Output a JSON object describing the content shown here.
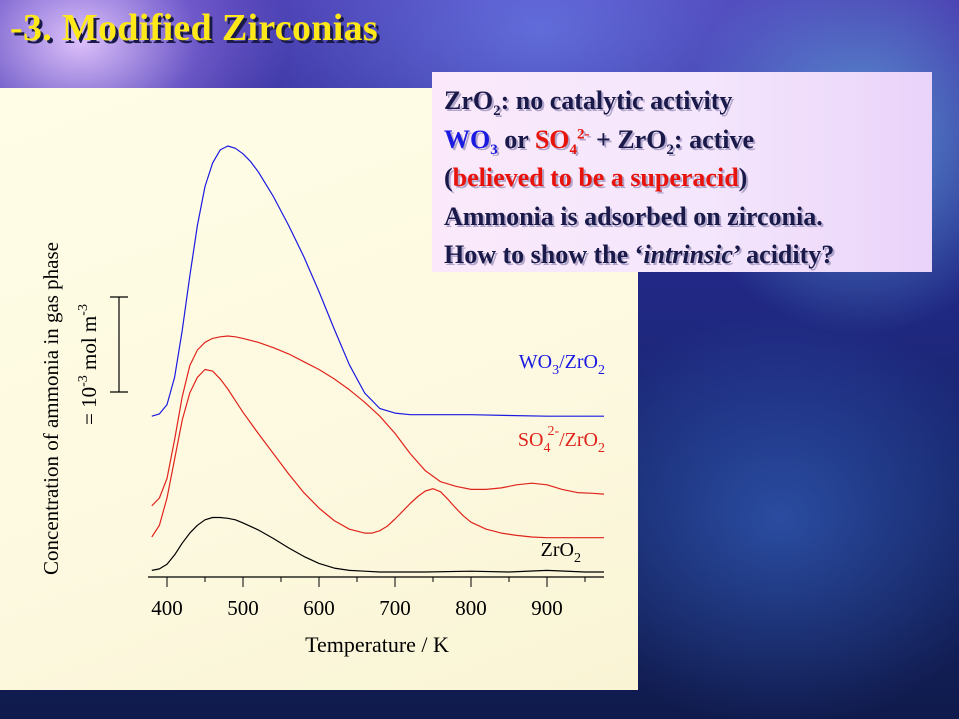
{
  "slide": {
    "title": "-3. Modified Zirconias"
  },
  "info_box": {
    "line1": {
      "formula": "ZrO",
      "sub": "2",
      "rest": ": no catalytic activity"
    },
    "line2": {
      "wo": "WO",
      "wo_sub": "3",
      "or": " or ",
      "so": "SO",
      "so_sub": "4",
      "so_sup": "2-",
      "plus": " + ZrO",
      "plus_sub": "2",
      "rest": ": active"
    },
    "line3": {
      "open": "(",
      "highlight": "believed to be a superacid",
      "close": ")"
    },
    "line4": "Ammonia is adsorbed on zirconia.",
    "line5": {
      "pre": "How to show the ‘",
      "italic": "intrinsic",
      "post": "’ acidity?"
    }
  },
  "colors": {
    "title": "#ffe81a",
    "wo3": "#1a1ae0",
    "so4": "#e0241c",
    "zro2": "#000000"
  },
  "chart_data": {
    "type": "line",
    "xlabel": "Temperature / K",
    "ylabel_line1": "Concentration of ammonia in gas phase",
    "ylabel_line2": {
      "prefix": "= 10",
      "exp1": "-3",
      "mid": " mol m",
      "exp2": "-3"
    },
    "xlim": [
      375,
      975
    ],
    "xticks": [
      400,
      500,
      600,
      700,
      800,
      900
    ],
    "scale_bar": "1 × 10^-3 mol m^-3 (offset curves, arbitrary baseline)",
    "series": [
      {
        "label_parts": {
          "a": "WO",
          "a_sub": "3",
          "b": "/ZrO",
          "b_sub": "2"
        },
        "color": "#1a1ae0",
        "x": [
          380,
          390,
          400,
          410,
          420,
          430,
          440,
          450,
          460,
          470,
          480,
          490,
          500,
          510,
          520,
          540,
          560,
          580,
          600,
          620,
          640,
          660,
          680,
          700,
          720,
          740,
          760,
          800,
          850,
          900,
          950,
          975
        ],
        "y": [
          2.0,
          2.03,
          2.15,
          2.5,
          3.1,
          3.8,
          4.45,
          4.95,
          5.25,
          5.42,
          5.47,
          5.44,
          5.37,
          5.27,
          5.14,
          4.82,
          4.45,
          4.05,
          3.6,
          3.12,
          2.66,
          2.3,
          2.1,
          2.04,
          2.02,
          2.02,
          2.02,
          2.02,
          2.01,
          2.0,
          2.0,
          2.0
        ]
      },
      {
        "label_parts": {
          "a": "SO",
          "a_sub": "4",
          "a_sup": "2-",
          "b": "/ZrO",
          "b_sub": "2"
        },
        "color": "#e0241c",
        "x": [
          380,
          390,
          400,
          410,
          420,
          430,
          440,
          450,
          460,
          470,
          480,
          490,
          500,
          520,
          540,
          560,
          580,
          600,
          620,
          640,
          660,
          680,
          700,
          720,
          740,
          760,
          780,
          800,
          820,
          840,
          860,
          880,
          900,
          920,
          940,
          960,
          975
        ],
        "y": [
          0.85,
          0.95,
          1.2,
          1.7,
          2.25,
          2.65,
          2.85,
          2.95,
          3.0,
          3.02,
          3.03,
          3.02,
          3.0,
          2.95,
          2.88,
          2.8,
          2.7,
          2.6,
          2.48,
          2.34,
          2.18,
          2.0,
          1.78,
          1.52,
          1.3,
          1.16,
          1.1,
          1.06,
          1.06,
          1.08,
          1.12,
          1.14,
          1.12,
          1.06,
          1.02,
          1.01,
          1.0
        ]
      },
      {
        "label_parts": null,
        "color": "#e0241c",
        "x": [
          380,
          390,
          400,
          410,
          420,
          430,
          440,
          450,
          460,
          470,
          480,
          490,
          500,
          520,
          540,
          560,
          580,
          600,
          620,
          640,
          660,
          670,
          680,
          690,
          700,
          710,
          720,
          730,
          740,
          750,
          760,
          770,
          780,
          790,
          800,
          820,
          840,
          860,
          880,
          900,
          920,
          950,
          975
        ],
        "y": [
          0.45,
          0.6,
          0.95,
          1.45,
          1.95,
          2.3,
          2.5,
          2.6,
          2.58,
          2.48,
          2.35,
          2.2,
          2.05,
          1.78,
          1.52,
          1.26,
          1.02,
          0.82,
          0.66,
          0.55,
          0.5,
          0.5,
          0.53,
          0.59,
          0.68,
          0.78,
          0.88,
          0.97,
          1.04,
          1.07,
          1.03,
          0.93,
          0.82,
          0.72,
          0.64,
          0.55,
          0.5,
          0.47,
          0.45,
          0.44,
          0.44,
          0.44,
          0.44
        ]
      },
      {
        "label_parts": {
          "a": "ZrO",
          "a_sub": "2"
        },
        "color": "#000000",
        "x": [
          380,
          390,
          400,
          410,
          420,
          430,
          440,
          450,
          460,
          470,
          480,
          490,
          500,
          520,
          540,
          560,
          580,
          600,
          620,
          640,
          660,
          680,
          700,
          740,
          800,
          850,
          900,
          950,
          975
        ],
        "y": [
          0.02,
          0.04,
          0.1,
          0.22,
          0.37,
          0.5,
          0.6,
          0.67,
          0.7,
          0.7,
          0.69,
          0.67,
          0.63,
          0.54,
          0.43,
          0.31,
          0.2,
          0.11,
          0.05,
          0.02,
          0.01,
          0.0,
          0.0,
          0.0,
          0.01,
          0.0,
          0.02,
          0.0,
          0.0
        ]
      }
    ]
  }
}
